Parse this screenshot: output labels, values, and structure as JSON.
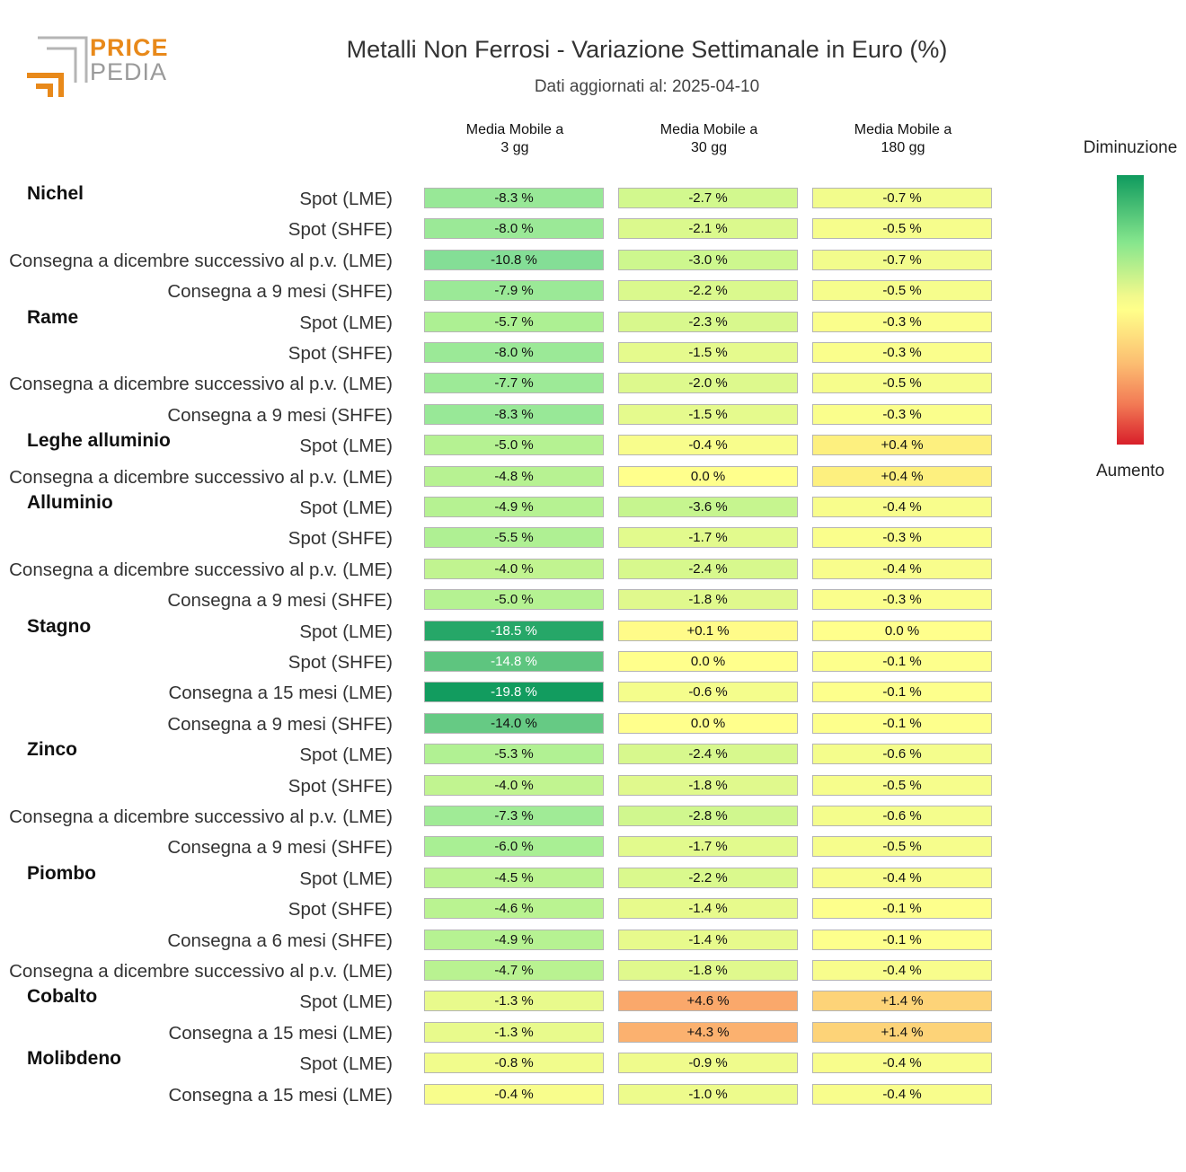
{
  "header": {
    "logo_line1": "PRICE",
    "logo_line2": "PEDIA",
    "title": "Metalli Non Ferrosi - Variazione Settimanale in Euro (%)",
    "subtitle": "Dati aggiornati al: 2025-04-10"
  },
  "legend": {
    "top_label": "Diminuzione",
    "bottom_label": "Aumento",
    "colors": [
      "#0f9a5e",
      "#86e68d",
      "#ffff8a",
      "#fcbd71",
      "#d81f2a"
    ]
  },
  "chart_data": {
    "type": "table",
    "columns": [
      "Media Mobile a\n3 gg",
      "Media Mobile a\n30 gg",
      "Media Mobile a\n180 gg"
    ],
    "groups": [
      {
        "name": "Nichel",
        "rows": [
          {
            "label": "Spot (LME)",
            "values": [
              -8.3,
              -2.7,
              -0.7
            ]
          },
          {
            "label": "Spot (SHFE)",
            "values": [
              -8.0,
              -2.1,
              -0.5
            ]
          },
          {
            "label": "Consegna a dicembre successivo al p.v. (LME)",
            "values": [
              -10.8,
              -3.0,
              -0.7
            ]
          },
          {
            "label": "Consegna a 9 mesi (SHFE)",
            "values": [
              -7.9,
              -2.2,
              -0.5
            ]
          }
        ]
      },
      {
        "name": "Rame",
        "rows": [
          {
            "label": "Spot (LME)",
            "values": [
              -5.7,
              -2.3,
              -0.3
            ]
          },
          {
            "label": "Spot (SHFE)",
            "values": [
              -8.0,
              -1.5,
              -0.3
            ]
          },
          {
            "label": "Consegna a dicembre successivo al p.v. (LME)",
            "values": [
              -7.7,
              -2.0,
              -0.5
            ]
          },
          {
            "label": "Consegna a 9 mesi (SHFE)",
            "values": [
              -8.3,
              -1.5,
              -0.3
            ]
          }
        ]
      },
      {
        "name": "Leghe alluminio",
        "rows": [
          {
            "label": "Spot (LME)",
            "values": [
              -5.0,
              -0.4,
              0.4
            ]
          },
          {
            "label": "Consegna a dicembre successivo al p.v. (LME)",
            "values": [
              -4.8,
              0.0,
              0.4
            ]
          }
        ]
      },
      {
        "name": "Alluminio",
        "rows": [
          {
            "label": "Spot (LME)",
            "values": [
              -4.9,
              -3.6,
              -0.4
            ]
          },
          {
            "label": "Spot (SHFE)",
            "values": [
              -5.5,
              -1.7,
              -0.3
            ]
          },
          {
            "label": "Consegna a dicembre successivo al p.v. (LME)",
            "values": [
              -4.0,
              -2.4,
              -0.4
            ]
          },
          {
            "label": "Consegna a 9 mesi (SHFE)",
            "values": [
              -5.0,
              -1.8,
              -0.3
            ]
          }
        ]
      },
      {
        "name": "Stagno",
        "rows": [
          {
            "label": "Spot (LME)",
            "values": [
              -18.5,
              0.1,
              0.0
            ]
          },
          {
            "label": "Spot (SHFE)",
            "values": [
              -14.8,
              0.0,
              -0.1
            ]
          },
          {
            "label": "Consegna a 15 mesi (LME)",
            "values": [
              -19.8,
              -0.6,
              -0.1
            ]
          },
          {
            "label": "Consegna a 9 mesi (SHFE)",
            "values": [
              -14.0,
              0.0,
              -0.1
            ]
          }
        ]
      },
      {
        "name": "Zinco",
        "rows": [
          {
            "label": "Spot (LME)",
            "values": [
              -5.3,
              -2.4,
              -0.6
            ]
          },
          {
            "label": "Spot (SHFE)",
            "values": [
              -4.0,
              -1.8,
              -0.5
            ]
          },
          {
            "label": "Consegna a dicembre successivo al p.v. (LME)",
            "values": [
              -7.3,
              -2.8,
              -0.6
            ]
          },
          {
            "label": "Consegna a 9 mesi (SHFE)",
            "values": [
              -6.0,
              -1.7,
              -0.5
            ]
          }
        ]
      },
      {
        "name": "Piombo",
        "rows": [
          {
            "label": "Spot (LME)",
            "values": [
              -4.5,
              -2.2,
              -0.4
            ]
          },
          {
            "label": "Spot (SHFE)",
            "values": [
              -4.6,
              -1.4,
              -0.1
            ]
          },
          {
            "label": "Consegna a 6 mesi (SHFE)",
            "values": [
              -4.9,
              -1.4,
              -0.1
            ]
          },
          {
            "label": "Consegna a dicembre successivo al p.v. (LME)",
            "values": [
              -4.7,
              -1.8,
              -0.4
            ]
          }
        ]
      },
      {
        "name": "Cobalto",
        "rows": [
          {
            "label": "Spot (LME)",
            "values": [
              -1.3,
              4.6,
              1.4
            ]
          },
          {
            "label": "Consegna a 15 mesi (LME)",
            "values": [
              -1.3,
              4.3,
              1.4
            ]
          }
        ]
      },
      {
        "name": "Molibdeno",
        "rows": [
          {
            "label": "Spot (LME)",
            "values": [
              -0.8,
              -0.9,
              -0.4
            ]
          },
          {
            "label": "Consegna a 15 mesi (LME)",
            "values": [
              -0.4,
              -1.0,
              -0.4
            ]
          }
        ]
      }
    ]
  }
}
